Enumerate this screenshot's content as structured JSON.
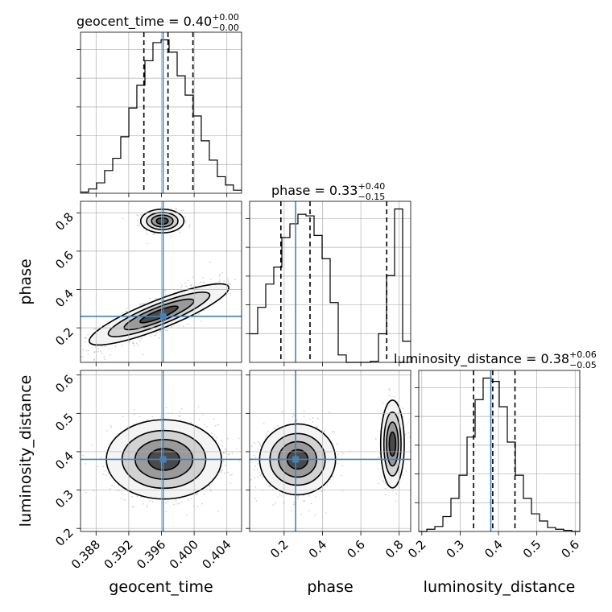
{
  "chart_data": {
    "type": "corner",
    "parameters": [
      "geocent_time",
      "phase",
      "luminosity_distance"
    ],
    "truths": {
      "geocent_time": 0.3962,
      "phase": 0.26,
      "luminosity_distance": 0.38
    },
    "titles": [
      {
        "param": "geocent_time",
        "prefix": "geocent_time = 0.40",
        "plus": "+0.00",
        "minus": "−0.00"
      },
      {
        "param": "phase",
        "prefix": "phase = 0.33",
        "plus": "+0.40",
        "minus": "−0.15"
      },
      {
        "param": "luminosity_distance",
        "prefix": "luminosity_distance = 0.38",
        "plus": "+0.06",
        "minus": "−0.05"
      }
    ],
    "x_ticks": {
      "geocent_time": [
        "0.388",
        "0.392",
        "0.396",
        "0.400",
        "0.404"
      ],
      "phase": [
        "0.2",
        "0.4",
        "0.6",
        "0.8"
      ],
      "luminosity_distance": [
        "0.2",
        "0.3",
        "0.4",
        "0.5",
        "0.6"
      ]
    },
    "y_ticks": {
      "phase": [
        "0.2",
        "0.4",
        "0.6",
        "0.8"
      ],
      "luminosity_distance": [
        "0.2",
        "0.3",
        "0.4",
        "0.5",
        "0.6"
      ]
    },
    "axis_labels": {
      "x": [
        "geocent_time",
        "phase",
        "luminosity_distance"
      ],
      "y": [
        "phase",
        "luminosity_distance"
      ]
    },
    "ranges": {
      "geocent_time": [
        0.3861,
        0.4058
      ],
      "phase": [
        0.02,
        0.86
      ],
      "luminosity_distance": [
        0.192,
        0.612
      ]
    },
    "histograms": {
      "geocent_time": {
        "edges": [
          0.3861,
          0.38708,
          0.38807,
          0.38905,
          0.39004,
          0.39102,
          0.39201,
          0.39299,
          0.39398,
          0.39496,
          0.39595,
          0.39693,
          0.39792,
          0.3989,
          0.39989,
          0.40087,
          0.40186,
          0.40284,
          0.40383,
          0.40481,
          0.4058
        ],
        "counts": [
          0.4,
          1.4,
          3.4,
          7.4,
          11.4,
          18.4,
          27.8,
          35.2,
          43.2,
          49.1,
          50.0,
          46.0,
          38.3,
          32.0,
          25.2,
          17.1,
          10.8,
          5.4,
          2.7,
          1.0
        ]
      },
      "phase": {
        "edges": [
          0.02,
          0.062,
          0.104,
          0.146,
          0.188,
          0.23,
          0.272,
          0.314,
          0.356,
          0.398,
          0.44,
          0.482,
          0.524,
          0.566,
          0.608,
          0.65,
          0.692,
          0.734,
          0.776,
          0.818,
          0.86
        ],
        "counts": [
          5.4,
          10.4,
          14.8,
          18.0,
          23.6,
          26.2,
          28.0,
          27.7,
          24.0,
          19.6,
          11.3,
          1.4,
          0.0,
          0.0,
          0.0,
          0.2,
          5.4,
          16.4,
          29.0,
          4.0
        ]
      },
      "luminosity_distance": {
        "edges": [
          0.192,
          0.213,
          0.234,
          0.255,
          0.276,
          0.297,
          0.318,
          0.339,
          0.36,
          0.381,
          0.402,
          0.423,
          0.444,
          0.465,
          0.486,
          0.507,
          0.528,
          0.549,
          0.57,
          0.591,
          0.612
        ],
        "counts": [
          0.0,
          0.4,
          0.9,
          2.7,
          6.0,
          10.2,
          17.1,
          23.9,
          27.8,
          27.2,
          22.6,
          16.2,
          10.2,
          6.0,
          3.2,
          1.9,
          0.7,
          0.4,
          0.2,
          0.0
        ]
      }
    },
    "quantiles": {
      "geocent_time": [
        0.39385,
        0.3968,
        0.39985
      ],
      "phase": [
        0.183,
        0.335,
        0.735
      ],
      "luminosity_distance": [
        0.335,
        0.385,
        0.443
      ]
    },
    "pairs": [
      {
        "x": "geocent_time",
        "y": "phase",
        "modes": [
          {
            "center": [
              0.3961,
              0.757
            ],
            "sigma": [
              0.0012,
              0.028
            ],
            "rho": 0.0,
            "weight": 0.33
          },
          {
            "center": [
              0.3957,
              0.27
            ],
            "sigma": [
              0.0038,
              0.085
            ],
            "rho": 0.85,
            "weight": 0.67
          }
        ]
      },
      {
        "x": "geocent_time",
        "y": "luminosity_distance",
        "modes": [
          {
            "center": [
              0.3963,
              0.38
            ],
            "sigma": [
              0.0032,
              0.047
            ],
            "rho": 0.0,
            "weight": 1.0
          }
        ]
      },
      {
        "x": "phase",
        "y": "luminosity_distance",
        "modes": [
          {
            "center": [
              0.27,
              0.38
            ],
            "sigma": [
              0.09,
              0.042
            ],
            "rho": 0.05,
            "weight": 0.67
          },
          {
            "center": [
              0.765,
              0.42
            ],
            "sigma": [
              0.028,
              0.052
            ],
            "rho": 0.0,
            "weight": 0.33
          }
        ]
      }
    ],
    "colors": {
      "truth": "#4682b4",
      "contour": "#000000",
      "points": "#808080",
      "grid": "#b0b0b0"
    }
  }
}
